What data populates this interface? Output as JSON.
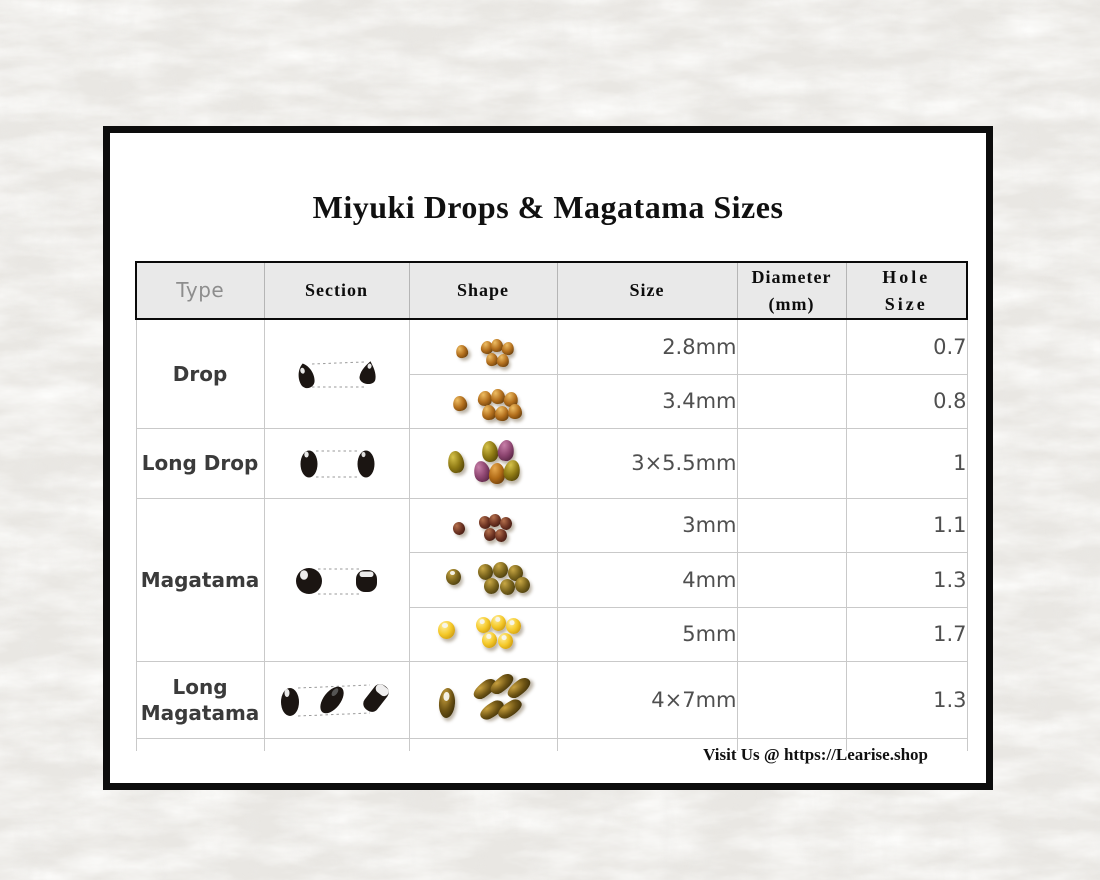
{
  "card": {
    "title": "Miyuki Drops & Magatama Sizes",
    "footer": "Visit Us @ https://Learise.shop"
  },
  "table": {
    "headers": {
      "type": "Type",
      "section": "Section",
      "shape": "Shape",
      "size": "Size",
      "diameter_line1": "Diameter",
      "diameter_line2": "(mm)",
      "hole_line1": "Hole",
      "hole_line2": "Size"
    },
    "groups": [
      {
        "type": "Drop",
        "section_icon": "drop-cross-section-icon",
        "rows": [
          {
            "art": "drop28",
            "shape_icon": "amber-drop-beads-2.8mm",
            "size": "2.8mm",
            "diameter": "",
            "hole_size": "0.7"
          },
          {
            "art": "drop34",
            "shape_icon": "amber-drop-beads-3.4mm",
            "size": "3.4mm",
            "diameter": "",
            "hole_size": "0.8"
          }
        ]
      },
      {
        "type": "Long Drop",
        "section_icon": "long-drop-cross-section-icon",
        "rows": [
          {
            "art": "longdrop",
            "shape_icon": "gold-purple-long-drop-beads",
            "size": "3×5.5mm",
            "diameter": "",
            "hole_size": "1"
          }
        ]
      },
      {
        "type": "Magatama",
        "section_icon": "magatama-cross-section-icon",
        "rows": [
          {
            "art": "mag3",
            "shape_icon": "maroon-magatama-beads-3mm",
            "size": "3mm",
            "diameter": "",
            "hole_size": "1.1"
          },
          {
            "art": "mag4",
            "shape_icon": "olive-magatama-beads-4mm",
            "size": "4mm",
            "diameter": "",
            "hole_size": "1.3"
          },
          {
            "art": "mag5",
            "shape_icon": "yellow-magatama-beads-5mm",
            "size": "5mm",
            "diameter": "",
            "hole_size": "1.7"
          }
        ]
      },
      {
        "type": "Long Magatama",
        "section_icon": "long-magatama-cross-section-icon",
        "rows": [
          {
            "art": "longmag",
            "shape_icon": "bronze-long-magatama-beads",
            "size": "4×7mm",
            "diameter": "",
            "hole_size": "1.3"
          }
        ]
      }
    ]
  },
  "colors": {
    "frame_black": "#0c0c0c",
    "header_bg": "#e9e9e9",
    "grid_line": "#c9c9c9",
    "header_gray_text": "#8d8d8d",
    "body_text": "#4f4f4f",
    "label_text": "#3b3b3b",
    "paper_base": "#e9e7e3"
  },
  "bead_art": {
    "drop28": {
      "shape": "drop",
      "palettes": [
        {
          "hi": "#eebd63",
          "base": "#b36f1d",
          "dark": "#5a3509"
        }
      ],
      "beads": [
        [
          46,
          25,
          12,
          13,
          -12,
          0,
          0
        ],
        [
          71,
          21,
          12,
          13,
          8,
          0,
          0
        ],
        [
          81,
          19,
          12,
          13,
          -6,
          0,
          0
        ],
        [
          92,
          22,
          12,
          13,
          12,
          0,
          0
        ],
        [
          76,
          33,
          12,
          13,
          -8,
          0,
          0
        ],
        [
          87,
          34,
          12,
          13,
          6,
          0,
          0
        ]
      ]
    },
    "drop34": {
      "shape": "drop",
      "palettes": [
        {
          "hi": "#eebd63",
          "base": "#b36f1d",
          "dark": "#5a3509"
        }
      ],
      "beads": [
        [
          43,
          21,
          14,
          15,
          -10,
          0,
          0
        ],
        [
          68,
          16,
          14,
          15,
          6,
          0,
          0
        ],
        [
          81,
          14,
          14,
          15,
          -6,
          0,
          0
        ],
        [
          94,
          17,
          14,
          15,
          10,
          0,
          0
        ],
        [
          72,
          30,
          14,
          15,
          -6,
          0,
          0
        ],
        [
          85,
          31,
          14,
          15,
          8,
          0,
          0
        ],
        [
          98,
          29,
          14,
          15,
          0,
          0,
          0
        ]
      ]
    },
    "longdrop": {
      "shape": "drop",
      "palettes": [
        {
          "hi": "#d6c24a",
          "base": "#8f7a14",
          "dark": "#4a3c06"
        },
        {
          "hi": "#c77fa8",
          "base": "#8d4570",
          "dark": "#4a1d38"
        },
        {
          "hi": "#e8a94e",
          "base": "#b06a16",
          "dark": "#5a3208"
        }
      ],
      "beads": [
        [
          38,
          22,
          16,
          22,
          -8,
          0,
          0
        ],
        [
          72,
          12,
          16,
          21,
          -6,
          0,
          0
        ],
        [
          88,
          11,
          16,
          21,
          8,
          1,
          0
        ],
        [
          64,
          32,
          16,
          21,
          -12,
          1,
          0
        ],
        [
          79,
          34,
          16,
          21,
          2,
          2,
          0
        ],
        [
          94,
          31,
          16,
          21,
          12,
          0,
          0
        ]
      ]
    },
    "mag3": {
      "shape": "round",
      "palettes": [
        {
          "hi": "#b5714d",
          "base": "#6f3524",
          "dark": "#38140d"
        }
      ],
      "beads": [
        [
          43,
          23,
          12,
          13,
          -10,
          0,
          0
        ],
        [
          69,
          17,
          12,
          13,
          -8,
          0,
          0
        ],
        [
          79,
          15,
          12,
          13,
          6,
          0,
          0
        ],
        [
          90,
          18,
          12,
          13,
          -10,
          0,
          0
        ],
        [
          74,
          29,
          12,
          13,
          8,
          0,
          0
        ],
        [
          85,
          30,
          12,
          13,
          -5,
          0,
          0
        ]
      ]
    },
    "mag4": {
      "shape": "round",
      "palettes": [
        {
          "hi": "#c9a845",
          "base": "#7a641c",
          "dark": "#3c310b"
        }
      ],
      "beads": [
        [
          36,
          16,
          15,
          16,
          0,
          0,
          1
        ],
        [
          68,
          11,
          15,
          16,
          -8,
          0,
          0
        ],
        [
          83,
          9,
          15,
          16,
          6,
          0,
          0
        ],
        [
          98,
          12,
          15,
          16,
          -5,
          0,
          0
        ],
        [
          74,
          25,
          15,
          16,
          8,
          0,
          0
        ],
        [
          90,
          26,
          15,
          16,
          -8,
          0,
          0
        ],
        [
          105,
          24,
          15,
          16,
          0,
          0,
          0
        ]
      ]
    },
    "mag5": {
      "shape": "round",
      "palettes": [
        {
          "hi": "#ffef9e",
          "base": "#f5c929",
          "dark": "#c08c0a"
        }
      ],
      "beads": [
        [
          28,
          13,
          17,
          18,
          0,
          0,
          1
        ],
        [
          66,
          9,
          15,
          16,
          -5,
          0,
          1
        ],
        [
          81,
          7,
          15,
          16,
          5,
          0,
          1
        ],
        [
          96,
          10,
          15,
          16,
          -8,
          0,
          1
        ],
        [
          72,
          24,
          15,
          16,
          6,
          0,
          1
        ],
        [
          88,
          25,
          15,
          16,
          -6,
          0,
          1
        ]
      ]
    },
    "longmag": {
      "shape": "leaf",
      "palettes": [
        {
          "hi": "#c8a03e",
          "base": "#6e5414",
          "dark": "#2f2405"
        }
      ],
      "beads": [
        [
          29,
          26,
          16,
          30,
          4,
          0,
          1,
          "oval"
        ],
        [
          62,
          20,
          26,
          14,
          -32,
          0,
          0
        ],
        [
          79,
          15,
          26,
          14,
          -32,
          0,
          0
        ],
        [
          96,
          19,
          26,
          14,
          -32,
          0,
          0
        ],
        [
          69,
          41,
          26,
          14,
          -27,
          0,
          0
        ],
        [
          87,
          40,
          26,
          14,
          -27,
          0,
          0
        ]
      ]
    }
  }
}
